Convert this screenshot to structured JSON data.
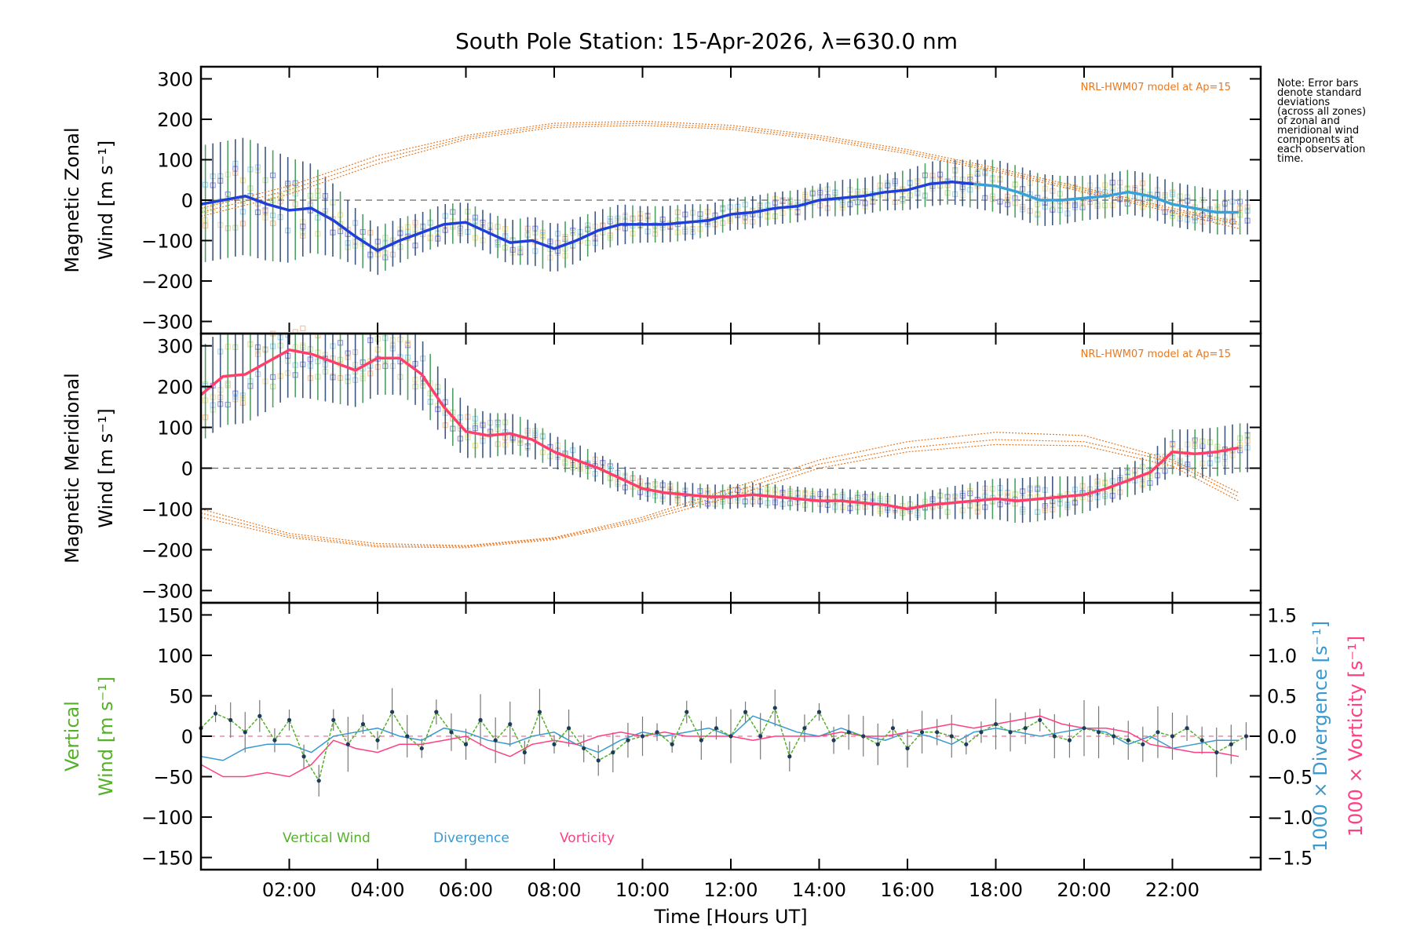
{
  "chart_data": {
    "type": "line",
    "title": "South Pole Station: 15-Apr-2026, λ=630.0 nm",
    "xlabel": "Time [Hours UT]",
    "xlim": [
      0,
      24
    ],
    "xticks": [
      2,
      4,
      6,
      8,
      10,
      12,
      14,
      16,
      18,
      20,
      22
    ],
    "xtick_labels": [
      "02:00",
      "04:00",
      "06:00",
      "08:00",
      "10:00",
      "12:00",
      "14:00",
      "16:00",
      "18:00",
      "20:00",
      "22:00"
    ],
    "note": [
      "Note: Error bars",
      "denote standard",
      "deviations",
      "(across all zones)",
      "of zonal and",
      "meridional wind",
      "components at",
      "each observation",
      "time."
    ],
    "panels": [
      {
        "id": "zonal",
        "ylabel_lines": [
          "Magnetic Zonal",
          "Wind [m s⁻¹]"
        ],
        "ylim": [
          -330,
          330
        ],
        "yticks": [
          -300,
          -200,
          -100,
          0,
          100,
          200,
          300
        ],
        "model_label": "NRL-HWM07 model at Ap=15",
        "colors": {
          "mean": "#1f3fd8",
          "mean_late": "#3aa0d8",
          "model": "#e87820",
          "zones": "#9a9ae8",
          "errbar": "#1d3b6a"
        },
        "mean_series": {
          "name": "Zonal wind",
          "x": [
            0.0,
            0.5,
            1.0,
            1.5,
            2.0,
            2.5,
            3.0,
            3.5,
            4.0,
            4.5,
            5.0,
            5.5,
            6.0,
            6.5,
            7.0,
            7.5,
            8.0,
            8.5,
            9.0,
            9.5,
            10.0,
            10.5,
            11.0,
            11.5,
            12.0,
            12.5,
            13.0,
            13.5,
            14.0,
            14.5,
            15.0,
            15.5,
            16.0,
            16.5,
            17.0,
            17.5,
            18.0,
            18.5,
            19.0,
            19.5,
            20.0,
            20.5,
            21.0,
            21.5,
            22.0,
            22.5,
            23.0,
            23.5
          ],
          "values": [
            -10,
            0,
            10,
            -10,
            -25,
            -20,
            -50,
            -90,
            -125,
            -100,
            -80,
            -60,
            -55,
            -80,
            -105,
            -100,
            -120,
            -100,
            -75,
            -60,
            -60,
            -60,
            -55,
            -50,
            -35,
            -30,
            -20,
            -15,
            0,
            5,
            10,
            20,
            25,
            40,
            45,
            40,
            35,
            20,
            0,
            0,
            5,
            10,
            20,
            10,
            -10,
            -20,
            -30,
            -30
          ]
        },
        "error_sd": [
          145,
          145,
          145,
          140,
          130,
          110,
          90,
          70,
          60,
          55,
          50,
          50,
          50,
          50,
          55,
          60,
          60,
          55,
          50,
          50,
          45,
          45,
          45,
          40,
          40,
          40,
          40,
          40,
          40,
          45,
          45,
          45,
          50,
          55,
          55,
          60,
          65,
          65,
          65,
          60,
          55,
          55,
          55,
          55,
          55,
          55,
          55,
          55
        ],
        "model_series": [
          {
            "name": "HWM07 curve 1",
            "x": [
              0.0,
              2.0,
              4.0,
              6.0,
              8.0,
              10.0,
              12.0,
              14.0,
              16.0,
              18.0,
              20.0,
              22.0,
              23.5
            ],
            "values": [
              -20,
              35,
              110,
              160,
              190,
              195,
              185,
              160,
              125,
              80,
              30,
              -20,
              -55
            ]
          },
          {
            "name": "HWM07 curve 2",
            "x": [
              0.0,
              2.0,
              4.0,
              6.0,
              8.0,
              10.0,
              12.0,
              14.0,
              16.0,
              18.0,
              20.0,
              22.0,
              23.5
            ],
            "values": [
              -30,
              25,
              100,
              155,
              185,
              190,
              180,
              155,
              120,
              75,
              25,
              -25,
              -60
            ]
          },
          {
            "name": "HWM07 curve 3",
            "x": [
              0.0,
              2.0,
              4.0,
              6.0,
              8.0,
              10.0,
              12.0,
              14.0,
              16.0,
              18.0,
              20.0,
              22.0,
              23.5
            ],
            "values": [
              -40,
              15,
              90,
              150,
              180,
              185,
              175,
              150,
              115,
              70,
              20,
              -30,
              -70
            ]
          }
        ]
      },
      {
        "id": "meridional",
        "ylabel_lines": [
          "Magnetic Meridional",
          "Wind [m s⁻¹]"
        ],
        "ylim": [
          -330,
          330
        ],
        "yticks": [
          -300,
          -200,
          -100,
          0,
          100,
          200,
          300
        ],
        "model_label": "NRL-HWM07 model at Ap=15",
        "colors": {
          "mean": "#ff3f6a",
          "model": "#e87820",
          "zones": "#9a9ae8",
          "errbar": "#1d3b6a"
        },
        "mean_series": {
          "name": "Meridional wind",
          "x": [
            0.0,
            0.5,
            1.0,
            1.5,
            2.0,
            2.5,
            3.0,
            3.5,
            4.0,
            4.5,
            5.0,
            5.5,
            6.0,
            6.5,
            7.0,
            7.5,
            8.0,
            8.5,
            9.0,
            9.5,
            10.0,
            10.5,
            11.0,
            11.5,
            12.0,
            12.5,
            13.0,
            13.5,
            14.0,
            14.5,
            15.0,
            15.5,
            16.0,
            16.5,
            17.0,
            17.5,
            18.0,
            18.5,
            19.0,
            19.5,
            20.0,
            20.5,
            21.0,
            21.5,
            22.0,
            22.5,
            23.0,
            23.5
          ],
          "values": [
            180,
            225,
            230,
            260,
            290,
            280,
            260,
            240,
            270,
            270,
            230,
            150,
            90,
            80,
            85,
            70,
            40,
            20,
            0,
            -25,
            -50,
            -60,
            -65,
            -70,
            -70,
            -65,
            -70,
            -75,
            -80,
            -80,
            -85,
            -90,
            -100,
            -90,
            -85,
            -80,
            -75,
            -80,
            -75,
            -70,
            -65,
            -50,
            -30,
            -10,
            40,
            35,
            40,
            50
          ]
        },
        "error_sd": [
          115,
          120,
          120,
          120,
          115,
          110,
          100,
          90,
          90,
          90,
          85,
          75,
          65,
          55,
          50,
          45,
          40,
          40,
          35,
          35,
          30,
          30,
          30,
          30,
          30,
          30,
          30,
          30,
          30,
          30,
          30,
          30,
          30,
          35,
          40,
          45,
          50,
          55,
          55,
          50,
          45,
          40,
          40,
          45,
          55,
          60,
          60,
          60
        ],
        "model_series": [
          {
            "name": "HWM07 curve 1",
            "x": [
              0.0,
              2.0,
              4.0,
              6.0,
              8.0,
              10.0,
              12.0,
              14.0,
              16.0,
              18.0,
              20.0,
              22.0,
              23.5
            ],
            "values": [
              -100,
              -160,
              -185,
              -190,
              -170,
              -120,
              -50,
              20,
              65,
              88,
              80,
              20,
              -60
            ]
          },
          {
            "name": "HWM07 curve 2",
            "x": [
              0.0,
              2.0,
              4.0,
              6.0,
              8.0,
              10.0,
              12.0,
              14.0,
              16.0,
              18.0,
              20.0,
              22.0,
              23.5
            ],
            "values": [
              -110,
              -165,
              -190,
              -192,
              -172,
              -125,
              -60,
              10,
              50,
              70,
              65,
              15,
              -70
            ]
          },
          {
            "name": "HWM07 curve 3",
            "x": [
              0.0,
              2.0,
              4.0,
              6.0,
              8.0,
              10.0,
              12.0,
              14.0,
              16.0,
              18.0,
              20.0,
              22.0,
              23.5
            ],
            "values": [
              -120,
              -170,
              -193,
              -195,
              -175,
              -130,
              -70,
              0,
              40,
              58,
              55,
              5,
              -80
            ]
          }
        ]
      },
      {
        "id": "vertical",
        "ylabel_lines": [
          "Vertical",
          "Wind [m s⁻¹]"
        ],
        "ylim": [
          -165,
          165
        ],
        "yticks": [
          -150,
          -100,
          -50,
          0,
          50,
          100,
          150
        ],
        "right_ylim": [
          -1.65,
          1.65
        ],
        "right_yticks": [
          -1.5,
          -1.0,
          -0.5,
          0.0,
          0.5,
          1.0,
          1.5
        ],
        "right_ytick_labels": [
          "−1.5",
          "−1.0",
          "−0.5",
          "0.0",
          "0.5",
          "1.0",
          "1.5"
        ],
        "right_ylabel_divergence": "1000 × Divergence [s⁻¹]",
        "right_ylabel_vorticity": "1000 × Vorticity [s⁻¹]",
        "legend": [
          {
            "label": "Vertical Wind",
            "color": "#55b02a"
          },
          {
            "label": "Divergence",
            "color": "#3a9ad0"
          },
          {
            "label": "Vorticity",
            "color": "#ff3f84"
          }
        ],
        "series": [
          {
            "name": "Vertical Wind",
            "color": "#55b02a",
            "x": [
              0.0,
              0.33,
              0.67,
              1.0,
              1.33,
              1.67,
              2.0,
              2.33,
              2.67,
              3.0,
              3.33,
              3.67,
              4.0,
              4.33,
              4.67,
              5.0,
              5.33,
              5.67,
              6.0,
              6.33,
              6.67,
              7.0,
              7.33,
              7.67,
              8.0,
              8.33,
              8.67,
              9.0,
              9.33,
              9.67,
              10.0,
              10.33,
              10.67,
              11.0,
              11.33,
              11.67,
              12.0,
              12.33,
              12.67,
              13.0,
              13.33,
              13.67,
              14.0,
              14.33,
              14.67,
              15.0,
              15.33,
              15.67,
              16.0,
              16.33,
              16.67,
              17.0,
              17.33,
              17.67,
              18.0,
              18.33,
              18.67,
              19.0,
              19.33,
              19.67,
              20.0,
              20.33,
              20.67,
              21.0,
              21.33,
              21.67,
              22.0,
              22.33,
              22.67,
              23.0,
              23.33,
              23.67
            ],
            "values": [
              10,
              28,
              20,
              5,
              25,
              -5,
              20,
              -25,
              -55,
              20,
              -10,
              15,
              -5,
              30,
              0,
              -15,
              30,
              5,
              -10,
              20,
              -5,
              15,
              -20,
              30,
              -10,
              10,
              -15,
              -30,
              -20,
              -5,
              0,
              5,
              -10,
              30,
              -5,
              10,
              0,
              30,
              0,
              35,
              -25,
              10,
              30,
              -5,
              5,
              0,
              -10,
              10,
              -15,
              5,
              5,
              0,
              -10,
              5,
              15,
              5,
              10,
              20,
              0,
              -5,
              10,
              5,
              0,
              -5,
              -10,
              5,
              0,
              10,
              -5,
              -20,
              -10,
              0
            ]
          },
          {
            "name": "Divergence",
            "color": "#3a9ad0",
            "x": [
              0.0,
              0.5,
              1.0,
              1.5,
              2.0,
              2.5,
              3.0,
              3.5,
              4.0,
              4.5,
              5.0,
              5.5,
              6.0,
              6.5,
              7.0,
              7.5,
              8.0,
              8.5,
              9.0,
              9.5,
              10.0,
              10.5,
              11.0,
              11.5,
              12.0,
              12.5,
              13.0,
              13.5,
              14.0,
              14.5,
              15.0,
              15.5,
              16.0,
              16.5,
              17.0,
              17.5,
              18.0,
              18.5,
              19.0,
              19.5,
              20.0,
              20.5,
              21.0,
              21.5,
              22.0,
              22.5,
              23.0,
              23.5
            ],
            "values": [
              -0.25,
              -0.3,
              -0.15,
              -0.1,
              -0.1,
              -0.2,
              0.0,
              0.05,
              0.1,
              0.0,
              -0.05,
              0.1,
              0.05,
              -0.05,
              -0.1,
              0.0,
              0.05,
              -0.1,
              -0.2,
              -0.05,
              0.05,
              0.0,
              0.05,
              0.1,
              0.0,
              0.25,
              0.15,
              0.05,
              0.0,
              0.1,
              0.0,
              -0.05,
              0.05,
              0.0,
              -0.1,
              0.05,
              0.1,
              0.05,
              0.0,
              0.05,
              0.1,
              0.05,
              -0.1,
              0.0,
              -0.15,
              -0.1,
              -0.05,
              -0.05
            ]
          },
          {
            "name": "Vorticity",
            "color": "#ff3f84",
            "x": [
              0.0,
              0.5,
              1.0,
              1.5,
              2.0,
              2.5,
              3.0,
              3.5,
              4.0,
              4.5,
              5.0,
              5.5,
              6.0,
              6.5,
              7.0,
              7.5,
              8.0,
              8.5,
              9.0,
              9.5,
              10.0,
              10.5,
              11.0,
              11.5,
              12.0,
              12.5,
              13.0,
              13.5,
              14.0,
              14.5,
              15.0,
              15.5,
              16.0,
              16.5,
              17.0,
              17.5,
              18.0,
              18.5,
              19.0,
              19.5,
              20.0,
              20.5,
              21.0,
              21.5,
              22.0,
              22.5,
              23.0,
              23.5
            ],
            "values": [
              -0.35,
              -0.5,
              -0.5,
              -0.45,
              -0.5,
              -0.35,
              -0.05,
              -0.15,
              -0.2,
              -0.1,
              -0.1,
              -0.05,
              0.0,
              -0.15,
              -0.25,
              -0.1,
              -0.05,
              -0.1,
              0.0,
              0.05,
              0.0,
              0.05,
              0.0,
              0.0,
              0.0,
              -0.05,
              0.0,
              0.0,
              0.0,
              0.05,
              0.0,
              0.0,
              0.05,
              0.1,
              0.15,
              0.1,
              0.15,
              0.2,
              0.25,
              0.15,
              0.1,
              0.1,
              0.05,
              -0.1,
              -0.15,
              -0.2,
              -0.2,
              -0.25
            ]
          }
        ]
      }
    ]
  }
}
